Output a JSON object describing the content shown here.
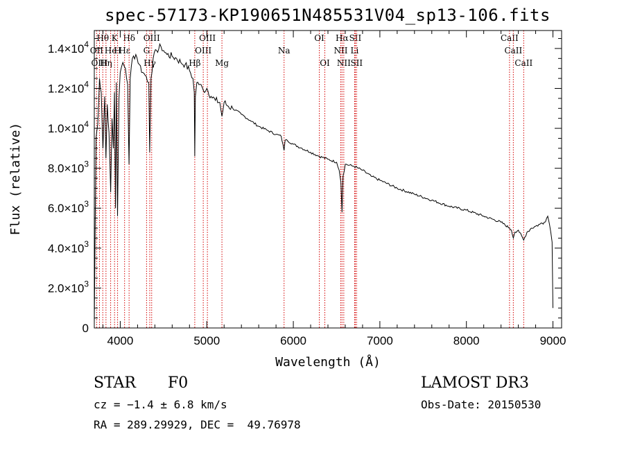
{
  "title": "spec-57173-KP190651N485531V04_sp13-106.fits",
  "info": {
    "class_label": "STAR",
    "subclass": "F0",
    "cz": "cz = −1.4 ± 6.8 km/s",
    "coords": "RA = 289.29929, DEC =  49.76978",
    "survey": "LAMOST DR3",
    "obs_date": "Obs-Date: 20150530"
  },
  "chart_data": {
    "type": "line",
    "title": "spec-57173-KP190651N485531V04_sp13-106.fits",
    "xlabel": "Wavelength (Å)",
    "ylabel": "Flux (relative)",
    "xlim": [
      3700,
      9100
    ],
    "ylim": [
      0,
      14900
    ],
    "x_ticks": [
      4000,
      5000,
      6000,
      7000,
      8000,
      9000
    ],
    "x_tick_labels": [
      "4000",
      "5000",
      "6000",
      "7000",
      "8000",
      "9000"
    ],
    "y_ticks": [
      0,
      2000,
      4000,
      6000,
      8000,
      10000,
      12000,
      14000
    ],
    "y_tick_labels": [
      {
        "m": "0",
        "e": ""
      },
      {
        "m": "2.0×10",
        "e": "3"
      },
      {
        "m": "4.0×10",
        "e": "3"
      },
      {
        "m": "6.0×10",
        "e": "3"
      },
      {
        "m": "8.0×10",
        "e": "3"
      },
      {
        "m": "1.0×10",
        "e": "4"
      },
      {
        "m": "1.2×10",
        "e": "4"
      },
      {
        "m": "1.4×10",
        "e": "4"
      }
    ],
    "spectrum": {
      "name": "flux",
      "x": [
        3700,
        3720,
        3740,
        3760,
        3780,
        3800,
        3820,
        3835,
        3850,
        3870,
        3889,
        3905,
        3920,
        3933,
        3945,
        3955,
        3968,
        3985,
        4000,
        4030,
        4060,
        4085,
        4101,
        4115,
        4140,
        4180,
        4220,
        4260,
        4300,
        4330,
        4340,
        4355,
        4380,
        4420,
        4470,
        4500,
        4540,
        4600,
        4650,
        4700,
        4750,
        4800,
        4840,
        4855,
        4861,
        4868,
        4885,
        4920,
        4960,
        5000,
        5050,
        5100,
        5150,
        5175,
        5200,
        5250,
        5300,
        5400,
        5500,
        5600,
        5700,
        5800,
        5860,
        5880,
        5893,
        5905,
        5930,
        6000,
        6100,
        6200,
        6300,
        6400,
        6500,
        6530,
        6550,
        6563,
        6575,
        6600,
        6700,
        6800,
        6900,
        7000,
        7200,
        7400,
        7600,
        7800,
        8000,
        8200,
        8400,
        8498,
        8520,
        8542,
        8560,
        8600,
        8662,
        8700,
        8750,
        8800,
        8850,
        8900,
        8940,
        8960,
        8975,
        8990,
        9000
      ],
      "y": [
        200,
        9500,
        10200,
        12500,
        11800,
        9000,
        11600,
        8500,
        11200,
        9800,
        6800,
        10500,
        9000,
        11800,
        6000,
        12300,
        5600,
        11500,
        12800,
        13300,
        13000,
        12200,
        8200,
        12500,
        13500,
        13700,
        13200,
        12800,
        12600,
        12300,
        8800,
        12500,
        13500,
        13900,
        14100,
        13900,
        13700,
        13600,
        13500,
        13300,
        13200,
        12900,
        12500,
        11800,
        8600,
        11600,
        12300,
        12200,
        11900,
        12000,
        11600,
        11400,
        11300,
        10600,
        11300,
        11100,
        11000,
        10700,
        10400,
        10100,
        9900,
        9700,
        9600,
        9200,
        8900,
        9400,
        9400,
        9200,
        9000,
        8800,
        8600,
        8450,
        8300,
        7900,
        7300,
        5800,
        7600,
        8200,
        8100,
        7900,
        7600,
        7400,
        7000,
        6700,
        6400,
        6100,
        5900,
        5600,
        5300,
        5000,
        4900,
        4500,
        4800,
        4900,
        4400,
        4800,
        5000,
        5100,
        5200,
        5300,
        5600,
        5200,
        4800,
        4300,
        1000
      ]
    },
    "line_markers": [
      {
        "name": "Hθ",
        "wave": 3798,
        "row": 0
      },
      {
        "name": "OII",
        "wave": 3727,
        "row": 1
      },
      {
        "name": "OIII",
        "wave": 3760,
        "row": 2
      },
      {
        "name": "Hη",
        "wave": 3835,
        "row": 2
      },
      {
        "name": "He",
        "wave": 3889,
        "row": 1
      },
      {
        "name": "K",
        "wave": 3934,
        "row": 0
      },
      {
        "name": "H",
        "wave": 3969,
        "row": 1
      },
      {
        "name": "Hδ",
        "wave": 4102,
        "row": 0
      },
      {
        "name": "Hε",
        "wave": 4050,
        "row": 1
      },
      {
        "name": "G",
        "wave": 4304,
        "row": 1
      },
      {
        "name": "Hγ",
        "wave": 4341,
        "row": 2
      },
      {
        "name": "OIII",
        "wave": 4363,
        "row": 0
      },
      {
        "name": "Hβ",
        "wave": 4861,
        "row": 2
      },
      {
        "name": "OIII",
        "wave": 4959,
        "row": 1
      },
      {
        "name": "OIII",
        "wave": 5007,
        "row": 0
      },
      {
        "name": "Mg",
        "wave": 5175,
        "row": 2
      },
      {
        "name": "Na",
        "wave": 5893,
        "row": 1
      },
      {
        "name": "OI",
        "wave": 6300,
        "row": 0
      },
      {
        "name": "OI",
        "wave": 6364,
        "row": 2
      },
      {
        "name": "NII",
        "wave": 6548,
        "row": 1
      },
      {
        "name": "Hα",
        "wave": 6563,
        "row": 0
      },
      {
        "name": "NII",
        "wave": 6583,
        "row": 2
      },
      {
        "name": "SII",
        "wave": 6716,
        "row": 0
      },
      {
        "name": "Li",
        "wave": 6708,
        "row": 1
      },
      {
        "name": "SII",
        "wave": 6731,
        "row": 2
      },
      {
        "name": "CaII",
        "wave": 8498,
        "row": 0
      },
      {
        "name": "CaII",
        "wave": 8542,
        "row": 1
      },
      {
        "name": "CaII",
        "wave": 8662,
        "row": 2
      }
    ]
  }
}
